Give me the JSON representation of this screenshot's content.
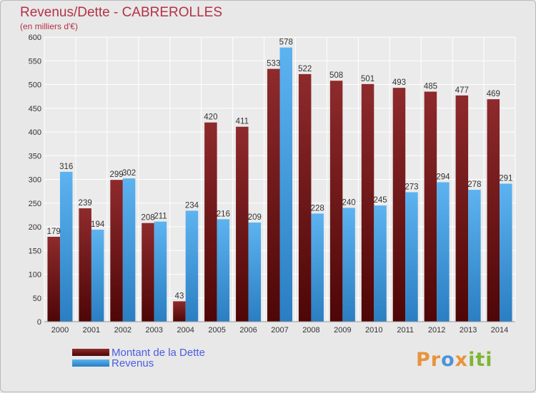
{
  "title": "Revenus/Dette - CABREROLLES",
  "subtitle": "(en milliers d'€)",
  "legend": {
    "debt_label": "Montant de la Dette",
    "revenue_label": "Revenus"
  },
  "brand": {
    "text": "Proxiti"
  },
  "colors": {
    "debt": "#7a1f22",
    "revenue": "#4aa3e6",
    "title": "#b33247",
    "legend_text": "#4a5de0"
  },
  "chart_data": {
    "type": "bar",
    "title": "Revenus/Dette - CABREROLLES",
    "subtitle": "(en milliers d'€)",
    "categories": [
      "2000",
      "2001",
      "2002",
      "2003",
      "2004",
      "2005",
      "2006",
      "2007",
      "2008",
      "2009",
      "2010",
      "2011",
      "2012",
      "2013",
      "2014"
    ],
    "series": [
      {
        "name": "Montant de la Dette",
        "values": [
          179,
          239,
          299,
          208,
          43,
          420,
          411,
          533,
          522,
          508,
          501,
          493,
          485,
          477,
          469
        ]
      },
      {
        "name": "Revenus",
        "values": [
          316,
          194,
          302,
          211,
          234,
          216,
          209,
          578,
          228,
          240,
          245,
          273,
          294,
          278,
          291
        ]
      }
    ],
    "ylim": [
      0,
      600
    ],
    "yticks": [
      0,
      50,
      100,
      150,
      200,
      250,
      300,
      350,
      400,
      450,
      500,
      550,
      600
    ],
    "grid": true,
    "legend_position": "bottom-left"
  }
}
